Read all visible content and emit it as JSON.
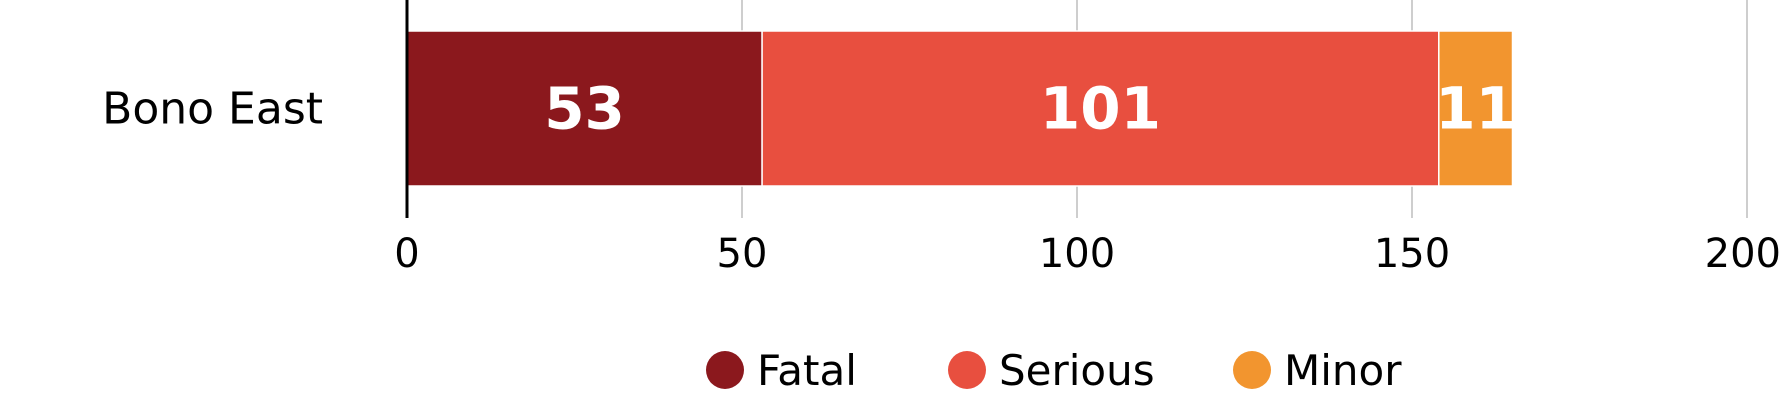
{
  "chart_data": {
    "type": "bar",
    "orientation": "horizontal",
    "stacked": true,
    "categories": [
      "Bono East"
    ],
    "series": [
      {
        "name": "Fatal",
        "values": [
          53
        ],
        "color": "#8b181d"
      },
      {
        "name": "Serious",
        "values": [
          101
        ],
        "color": "#e84f3f"
      },
      {
        "name": "Minor",
        "values": [
          11
        ],
        "color": "#f2952f"
      }
    ],
    "data_labels": true,
    "xlim": [
      0,
      200
    ],
    "x_ticks": [
      0,
      50,
      100,
      150,
      200
    ],
    "grid": "vertical",
    "legend": "bottom-center",
    "title": "",
    "xlabel": "",
    "ylabel": ""
  }
}
